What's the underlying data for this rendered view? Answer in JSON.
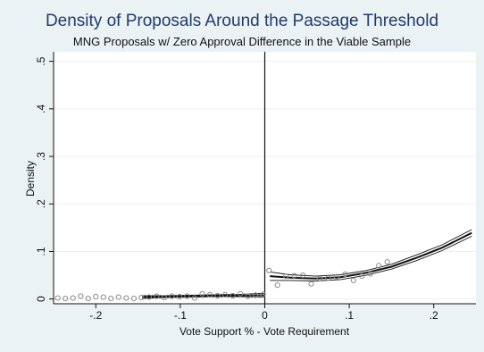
{
  "chart_data": {
    "type": "scatter",
    "title": "Density of Proposals Around the Passage Threshold",
    "subtitle": "MNG Proposals w/ Zero Approval Difference in the Viable Sample",
    "xlabel": "Vote Support % - Vote Requirement",
    "ylabel": "Density",
    "xlim": [
      -0.25,
      0.25
    ],
    "ylim": [
      -0.01,
      0.52
    ],
    "x_ticks": [
      -0.2,
      -0.1,
      0,
      0.1,
      0.2
    ],
    "x_tick_labels": [
      "-.2",
      "-.1",
      "0",
      ".1",
      ".2"
    ],
    "y_ticks": [
      0,
      0.1,
      0.2,
      0.3,
      0.4,
      0.5
    ],
    "y_tick_labels": [
      "0",
      ".1",
      ".2",
      ".3",
      ".4",
      ".5"
    ],
    "grid": true,
    "threshold_x": 0,
    "points": {
      "x": [
        -0.245,
        -0.236,
        -0.227,
        -0.218,
        -0.209,
        -0.2,
        -0.191,
        -0.182,
        -0.173,
        -0.164,
        -0.155,
        -0.146,
        -0.137,
        -0.128,
        -0.119,
        -0.11,
        -0.101,
        -0.092,
        -0.083,
        -0.074,
        -0.065,
        -0.056,
        -0.047,
        -0.038,
        -0.029,
        -0.02,
        -0.011,
        -0.002,
        0.005,
        0.015,
        0.025,
        0.035,
        0.045,
        0.055,
        0.065,
        0.075,
        0.085,
        0.095,
        0.105,
        0.115,
        0.125,
        0.135,
        0.145
      ],
      "y": [
        0.002,
        0.001,
        0.002,
        0.006,
        0.001,
        0.005,
        0.004,
        0.001,
        0.004,
        0.002,
        0.001,
        0.003,
        0.004,
        0.006,
        0.003,
        0.006,
        0.005,
        0.006,
        0.002,
        0.011,
        0.009,
        0.007,
        0.009,
        0.007,
        0.011,
        0.006,
        0.008,
        0.01,
        0.06,
        0.029,
        0.048,
        0.049,
        0.05,
        0.032,
        0.043,
        0.044,
        0.047,
        0.052,
        0.039,
        0.048,
        0.053,
        0.07,
        0.078
      ]
    },
    "fits": [
      {
        "x": [
          -0.145,
          -0.12,
          -0.09,
          -0.06,
          -0.03,
          -0.001
        ],
        "fit": [
          0.004,
          0.005,
          0.006,
          0.007,
          0.007,
          0.008
        ],
        "lower": [
          0.001,
          0.003,
          0.004,
          0.005,
          0.005,
          0.004
        ],
        "upper": [
          0.007,
          0.007,
          0.008,
          0.009,
          0.01,
          0.012
        ]
      },
      {
        "x": [
          0.006,
          0.03,
          0.06,
          0.09,
          0.12,
          0.15,
          0.18,
          0.21,
          0.245
        ],
        "fit": [
          0.048,
          0.045,
          0.043,
          0.046,
          0.055,
          0.068,
          0.087,
          0.108,
          0.139
        ],
        "lower": [
          0.039,
          0.039,
          0.038,
          0.041,
          0.05,
          0.063,
          0.081,
          0.102,
          0.132
        ],
        "upper": [
          0.057,
          0.051,
          0.048,
          0.051,
          0.06,
          0.073,
          0.093,
          0.114,
          0.146
        ]
      }
    ],
    "colors": {
      "background": "#eaf2f3",
      "plot_area": "#ffffff",
      "gridline": "#e9f0f1",
      "title": "#1f3b6e",
      "points": "#8a8a8a",
      "lines": "#111111"
    }
  }
}
